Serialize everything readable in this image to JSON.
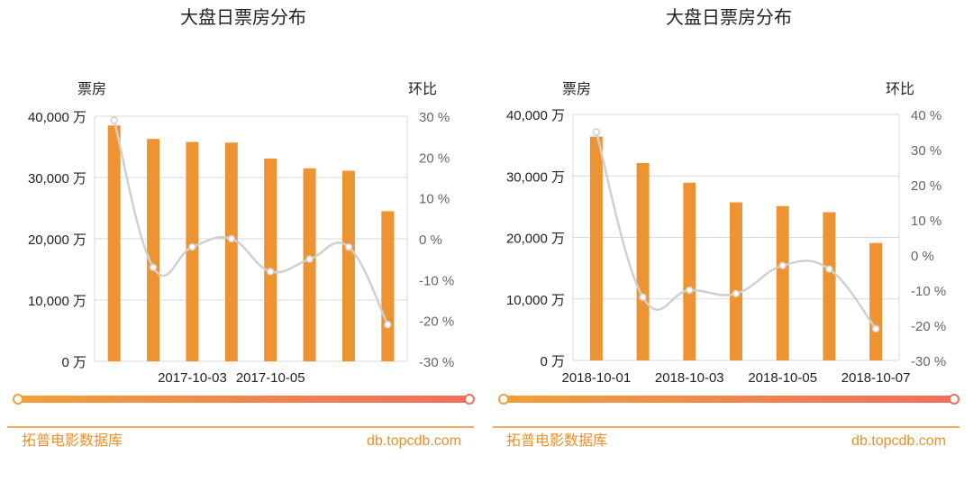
{
  "colors": {
    "bar": "#ee9332",
    "line": "#d0d0d0",
    "grid": "#d9d9d9",
    "footer_accent": "#e8912e",
    "slider_start": "#f0a03a",
    "slider_end": "#ef6f5f"
  },
  "footer": {
    "brand": "拓普电影数据库",
    "url": "db.topcdb.com"
  },
  "chart_data": [
    {
      "type": "bar",
      "title": "大盘日票房分布",
      "ylabel": "票房",
      "y2label": "环比",
      "ylim": [
        0,
        40000
      ],
      "y2lim": [
        -30,
        30
      ],
      "y_ticks": [
        "40,000 万",
        "30,000 万",
        "20,000 万",
        "10,000 万",
        "0 万"
      ],
      "y2_ticks": [
        "30 %",
        "20 %",
        "10 %",
        "0 %",
        "-10 %",
        "-20 %",
        "-30 %"
      ],
      "x_tick_labels": [
        "2017-10-03",
        "2017-10-05"
      ],
      "x_tick_positions": [
        2,
        4
      ],
      "series": [
        {
          "values": [
            38500,
            36300,
            35800,
            35700,
            33100,
            31500,
            31100,
            24500
          ]
        },
        {
          "values": [
            29,
            -7,
            -2,
            0,
            -8,
            -5,
            -2,
            -21
          ]
        }
      ]
    },
    {
      "type": "bar",
      "title": "大盘日票房分布",
      "ylabel": "票房",
      "y2label": "环比",
      "ylim": [
        0,
        40000
      ],
      "y2lim": [
        -30,
        40
      ],
      "y_ticks": [
        "40,000 万",
        "30,000 万",
        "20,000 万",
        "10,000 万",
        "0 万"
      ],
      "y2_ticks": [
        "40 %",
        "30 %",
        "20 %",
        "10 %",
        "0 %",
        "-10 %",
        "-20 %",
        "-30 %"
      ],
      "x_tick_labels": [
        "2018-10-01",
        "2018-10-03",
        "2018-10-05",
        "2018-10-07"
      ],
      "x_tick_positions": [
        0,
        2,
        4,
        6
      ],
      "series": [
        {
          "values": [
            36400,
            32100,
            28900,
            25700,
            25100,
            24100,
            19100
          ]
        },
        {
          "values": [
            35,
            -12,
            -10,
            -11,
            -3,
            -4,
            -21
          ]
        }
      ]
    }
  ]
}
